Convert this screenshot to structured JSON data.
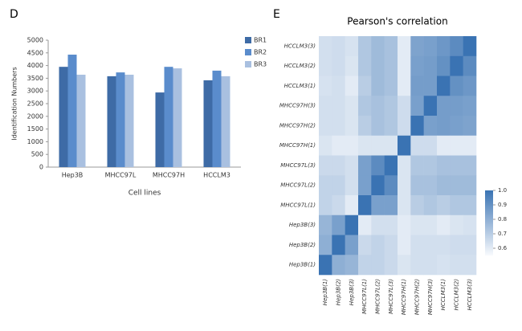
{
  "chart_data": [
    {
      "type": "bar",
      "panel": "D",
      "categories": [
        "Hep3B",
        "MHCC97L",
        "MHCC97H",
        "HCCLM3"
      ],
      "series": [
        {
          "name": "BR1",
          "color": "#3e6ba6",
          "values": [
            3950,
            3580,
            2940,
            3420
          ]
        },
        {
          "name": "BR2",
          "color": "#5a8ccc",
          "values": [
            4430,
            3730,
            3950,
            3800
          ]
        },
        {
          "name": "BR3",
          "color": "#a9c0e0",
          "values": [
            3640,
            3640,
            3890,
            3580
          ]
        }
      ],
      "ylim": [
        0,
        5000
      ],
      "yticks": [
        0,
        500,
        1000,
        1500,
        2000,
        2500,
        3000,
        3500,
        4000,
        4500,
        5000
      ],
      "y_label": "Identification Numbers",
      "x_label": "Cell lines",
      "legend": "right",
      "grid": false
    },
    {
      "type": "heatmap",
      "panel": "E",
      "title": "Pearson's correlation",
      "x": [
        "Hep3B(1)",
        "Hep3B(2)",
        "Hep3B(3)",
        "MHCC97L(1)",
        "MHCC97L(2)",
        "MHCC97L(3)",
        "MHCC97H(1)",
        "MHCC97H(2)",
        "MHCC97H(3)",
        "HCCLM3(1)",
        "HCCLM3(2)",
        "HCCLM3(3)"
      ],
      "y": [
        "HCCLM3(3)",
        "HCCLM3(2)",
        "HCCLM3(1)",
        "MHCC97H(3)",
        "MHCC97H(2)",
        "MHCC97H(1)",
        "MHCC97L(3)",
        "MHCC97L(2)",
        "MHCC97L(1)",
        "Hep3B(3)",
        "Hep3B(2)",
        "Hep3B(1)"
      ],
      "values": [
        [
          0.64,
          0.65,
          0.63,
          0.72,
          0.76,
          0.74,
          0.6,
          0.84,
          0.85,
          0.88,
          0.92,
          1
        ],
        [
          0.64,
          0.65,
          0.62,
          0.72,
          0.76,
          0.74,
          0.6,
          0.85,
          0.86,
          0.9,
          1,
          0.92
        ],
        [
          0.63,
          0.64,
          0.6,
          0.7,
          0.76,
          0.74,
          0.6,
          0.86,
          0.86,
          1,
          0.9,
          0.88
        ],
        [
          0.64,
          0.64,
          0.62,
          0.72,
          0.74,
          0.72,
          0.65,
          0.85,
          1,
          0.86,
          0.86,
          0.85
        ],
        [
          0.64,
          0.64,
          0.62,
          0.7,
          0.74,
          0.72,
          0.65,
          1,
          0.85,
          0.86,
          0.85,
          0.84
        ],
        [
          0.62,
          0.6,
          0.6,
          0.62,
          0.62,
          0.62,
          1,
          0.65,
          0.65,
          0.6,
          0.6,
          0.6
        ],
        [
          0.66,
          0.66,
          0.64,
          0.85,
          0.92,
          1,
          0.62,
          0.72,
          0.72,
          0.74,
          0.74,
          0.74
        ],
        [
          0.68,
          0.68,
          0.64,
          0.85,
          1,
          0.92,
          0.62,
          0.74,
          0.74,
          0.76,
          0.76,
          0.76
        ],
        [
          0.68,
          0.66,
          0.6,
          1,
          0.85,
          0.85,
          0.62,
          0.7,
          0.72,
          0.7,
          0.72,
          0.72
        ],
        [
          0.78,
          0.85,
          1,
          0.6,
          0.64,
          0.64,
          0.6,
          0.62,
          0.62,
          0.6,
          0.62,
          0.63
        ],
        [
          0.8,
          1,
          0.85,
          0.66,
          0.68,
          0.66,
          0.6,
          0.64,
          0.64,
          0.64,
          0.65,
          0.65
        ],
        [
          1,
          0.8,
          0.78,
          0.68,
          0.68,
          0.66,
          0.62,
          0.64,
          0.64,
          0.63,
          0.64,
          0.64
        ]
      ],
      "clim": [
        0.55,
        1.0
      ],
      "colorbar_ticks": [
        0.6,
        0.7,
        0.8,
        0.9,
        {
          "value": 1,
          "label": "1.0"
        }
      ],
      "colors": [
        "#f8fafd",
        "#3a73b3"
      ]
    }
  ]
}
